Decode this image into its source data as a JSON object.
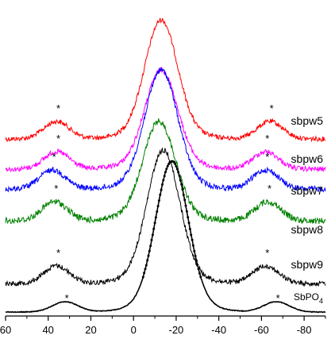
{
  "chart_data": {
    "type": "line",
    "title": "",
    "xlabel": "",
    "ylabel": "",
    "xlim": [
      60,
      -90
    ],
    "x_reversed": true,
    "x_ticks": [
      60,
      40,
      20,
      0,
      -20,
      -40,
      -60,
      -80
    ],
    "x_tick_labels": [
      "60",
      "40",
      "20",
      "0",
      "-20",
      "-40",
      "-60",
      "-80"
    ],
    "grid": false,
    "legend": "inline labels at right",
    "annotation_symbol": "*",
    "series": [
      {
        "name": "sbpw5",
        "color": "#ff0000",
        "peak_x": -13,
        "peak_height": 1.0,
        "side_peaks_x": [
          36,
          -64
        ],
        "side_height": 0.12,
        "offset": 5,
        "markers": false
      },
      {
        "name": "sbpw6",
        "color": "#ff00ff",
        "peak_x": -13,
        "peak_height": 0.95,
        "side_peaks_x": [
          36,
          -62
        ],
        "side_height": 0.11,
        "offset": 4,
        "markers": false
      },
      {
        "name": "sbpw7",
        "color": "#0000ff",
        "peak_x": -13,
        "peak_height": 0.95,
        "side_peaks_x": [
          38,
          -62
        ],
        "side_height": 0.1,
        "offset": 3,
        "markers": false
      },
      {
        "name": "sbpw8",
        "color": "#008000",
        "peak_x": -12,
        "peak_height": 0.9,
        "side_peaks_x": [
          37,
          -63
        ],
        "side_height": 0.1,
        "offset": 2,
        "markers": false
      },
      {
        "name": "sbpw9",
        "color": "#000000",
        "peak_x": -14,
        "peak_height": 1.0,
        "side_peaks_x": [
          36,
          -62
        ],
        "side_height": 0.1,
        "offset": 1,
        "markers": false
      },
      {
        "name": "SbPO",
        "name_subscript": "4",
        "color": "#000000",
        "peak_x": -18,
        "peak_height": 1.0,
        "side_peaks_x": [
          32,
          -67
        ],
        "side_height": 0.07,
        "offset": 0,
        "markers": true
      }
    ]
  }
}
